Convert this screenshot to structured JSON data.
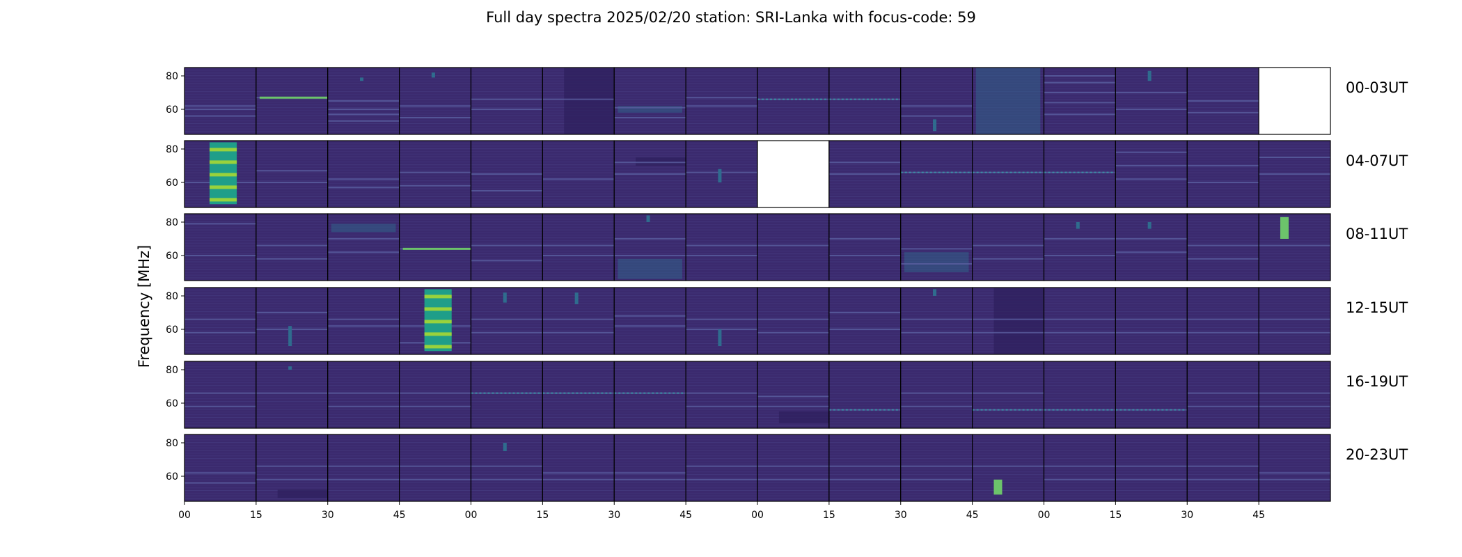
{
  "chart_data": {
    "type": "heatmap",
    "title": "Full day spectra 2025/02/20 station: SRI-Lanka with focus-code: 59",
    "ylabel": "Frequency [MHz]",
    "xlabel": "",
    "ylim": [
      45,
      85
    ],
    "y_ticks": [
      "80",
      "60"
    ],
    "x_tick_labels": [
      "00",
      "15",
      "30",
      "45",
      "00",
      "15",
      "30",
      "45",
      "00",
      "15",
      "30",
      "45",
      "00",
      "15",
      "30",
      "45"
    ],
    "colormap": "viridis",
    "colors": {
      "background": "#3b2a6e",
      "line": "#473d82",
      "mid": "#2f6c8e",
      "bright": "#6cc36b",
      "max": "#b8de29",
      "empty": "#ffffff"
    },
    "rows": [
      {
        "label": "00-03UT",
        "panels": [
          {
            "lines": [
              62,
              60,
              56
            ]
          },
          {
            "lines": [
              67
            ],
            "bright_line": 67
          },
          {
            "lines": [
              65,
              60,
              57,
              53
            ],
            "blob": [
              77,
              79
            ]
          },
          {
            "lines": [
              62,
              55
            ],
            "blob": [
              79,
              82
            ]
          },
          {
            "lines": [
              66,
              60
            ]
          },
          {
            "lines": [
              66
            ],
            "dark_band": [
              45,
              85
            ]
          },
          {
            "lines": [
              61,
              55
            ],
            "band": [
              58,
              62
            ]
          },
          {
            "lines": [
              67,
              62
            ]
          },
          {
            "lines": [
              66
            ],
            "dotted": 66
          },
          {
            "lines": [
              66
            ],
            "dotted": 66
          },
          {
            "lines": [
              62,
              56
            ],
            "blob": [
              47,
              54
            ]
          },
          {
            "lines": [],
            "band": [
              45,
              85
            ]
          },
          {
            "lines": [
              80,
              76,
              70,
              64,
              57
            ]
          },
          {
            "lines": [
              70,
              60
            ],
            "blob": [
              77,
              83
            ]
          },
          {
            "lines": [
              65,
              58
            ]
          },
          {
            "empty": true
          }
        ]
      },
      {
        "label": "04-07UT",
        "panels": [
          {
            "lines": [
              60
            ],
            "hot_band": [
              47,
              84
            ]
          },
          {
            "lines": [
              67,
              60
            ]
          },
          {
            "lines": [
              62,
              57
            ]
          },
          {
            "lines": [
              66,
              58
            ]
          },
          {
            "lines": [
              65,
              55
            ]
          },
          {
            "lines": [
              62
            ]
          },
          {
            "lines": [
              72,
              65
            ],
            "dark_band": [
              70,
              75
            ]
          },
          {
            "lines": [
              66
            ],
            "blob": [
              60,
              68
            ]
          },
          {
            "empty": true
          },
          {
            "lines": [
              72,
              65
            ]
          },
          {
            "lines": [
              66
            ],
            "dotted": 66
          },
          {
            "lines": [
              66
            ],
            "dotted": 66
          },
          {
            "lines": [
              66
            ],
            "dotted": 66
          },
          {
            "lines": [
              78,
              70,
              62
            ]
          },
          {
            "lines": [
              70,
              60
            ]
          },
          {
            "lines": [
              75,
              65
            ]
          }
        ]
      },
      {
        "label": "08-11UT",
        "panels": [
          {
            "lines": [
              79,
              60
            ]
          },
          {
            "lines": [
              66,
              58
            ]
          },
          {
            "lines": [
              70,
              62
            ],
            "band": [
              74,
              79
            ]
          },
          {
            "lines": [
              64
            ],
            "bright_line": 64
          },
          {
            "lines": [
              66,
              57
            ]
          },
          {
            "lines": [
              66,
              60
            ]
          },
          {
            "lines": [
              70,
              60
            ],
            "blob": [
              80,
              84
            ],
            "band": [
              46,
              58
            ]
          },
          {
            "lines": [
              66,
              60
            ]
          },
          {
            "lines": [
              66
            ]
          },
          {
            "lines": [
              70,
              60
            ]
          },
          {
            "lines": [
              64,
              55
            ],
            "band": [
              50,
              62
            ]
          },
          {
            "lines": [
              66,
              58
            ]
          },
          {
            "lines": [
              70,
              60
            ],
            "blob": [
              76,
              80
            ]
          },
          {
            "lines": [
              70,
              62
            ],
            "blob": [
              76,
              80
            ]
          },
          {
            "lines": [
              66,
              58
            ]
          },
          {
            "lines": [
              66
            ],
            "hot_blob": [
              70,
              83
            ]
          }
        ]
      },
      {
        "label": "12-15UT",
        "panels": [
          {
            "lines": [
              66,
              58
            ]
          },
          {
            "lines": [
              70,
              60
            ],
            "blob": [
              50,
              62
            ]
          },
          {
            "lines": [
              66,
              62
            ]
          },
          {
            "lines": [
              62,
              52
            ],
            "hot_band": [
              47,
              84
            ]
          },
          {
            "lines": [
              66,
              58
            ],
            "blob": [
              76,
              82
            ]
          },
          {
            "lines": [
              66,
              58
            ],
            "blob": [
              75,
              82
            ]
          },
          {
            "lines": [
              68,
              62
            ]
          },
          {
            "lines": [
              66,
              60
            ],
            "blob": [
              50,
              60
            ]
          },
          {
            "lines": [
              66,
              58
            ]
          },
          {
            "lines": [
              70,
              60
            ]
          },
          {
            "lines": [
              66,
              58
            ],
            "blob": [
              80,
              84
            ]
          },
          {
            "lines": [
              66,
              58
            ],
            "dark_band": [
              45,
              85
            ]
          },
          {
            "lines": [
              66,
              58
            ]
          },
          {
            "lines": [
              66,
              58
            ]
          },
          {
            "lines": [
              66,
              58
            ]
          },
          {
            "lines": [
              66,
              58
            ]
          }
        ]
      },
      {
        "label": "16-19UT",
        "panels": [
          {
            "lines": [
              66,
              58
            ]
          },
          {
            "lines": [
              66
            ],
            "blob": [
              80,
              82
            ]
          },
          {
            "lines": [
              66,
              58
            ]
          },
          {
            "lines": [
              66,
              58
            ]
          },
          {
            "lines": [
              66
            ],
            "dotted": 66
          },
          {
            "lines": [
              66
            ],
            "dotted": 66
          },
          {
            "lines": [
              66
            ],
            "dotted": 66
          },
          {
            "lines": [
              66,
              58
            ]
          },
          {
            "lines": [
              64,
              58
            ],
            "dark_band": [
              48,
              55
            ]
          },
          {
            "lines": [
              56
            ],
            "dotted": 56
          },
          {
            "lines": [
              66,
              58
            ]
          },
          {
            "lines": [
              66,
              56
            ],
            "dotted": 56
          },
          {
            "lines": [
              56
            ],
            "dotted": 56
          },
          {
            "lines": [
              56
            ],
            "dotted": 56
          },
          {
            "lines": [
              66,
              58
            ]
          },
          {
            "lines": [
              66,
              58
            ]
          }
        ]
      },
      {
        "label": "20-23UT",
        "panels": [
          {
            "lines": [
              62,
              56
            ]
          },
          {
            "lines": [
              66,
              58
            ],
            "dark_band": [
              47,
              52
            ]
          },
          {
            "lines": [
              66,
              58
            ]
          },
          {
            "lines": [
              66,
              58
            ]
          },
          {
            "lines": [
              66,
              58
            ],
            "blob": [
              75,
              80
            ]
          },
          {
            "lines": [
              62,
              58
            ]
          },
          {
            "lines": [
              62,
              58
            ]
          },
          {
            "lines": [
              66,
              58
            ]
          },
          {
            "lines": [
              66,
              58
            ]
          },
          {
            "lines": [
              66,
              58
            ]
          },
          {
            "lines": [
              66,
              58
            ]
          },
          {
            "lines": [
              66
            ],
            "hot_blob": [
              49,
              58
            ]
          },
          {
            "lines": [
              66,
              58
            ]
          },
          {
            "lines": [
              66,
              58
            ]
          },
          {
            "lines": [
              66,
              58
            ]
          },
          {
            "lines": [
              62,
              58
            ]
          }
        ]
      }
    ]
  }
}
